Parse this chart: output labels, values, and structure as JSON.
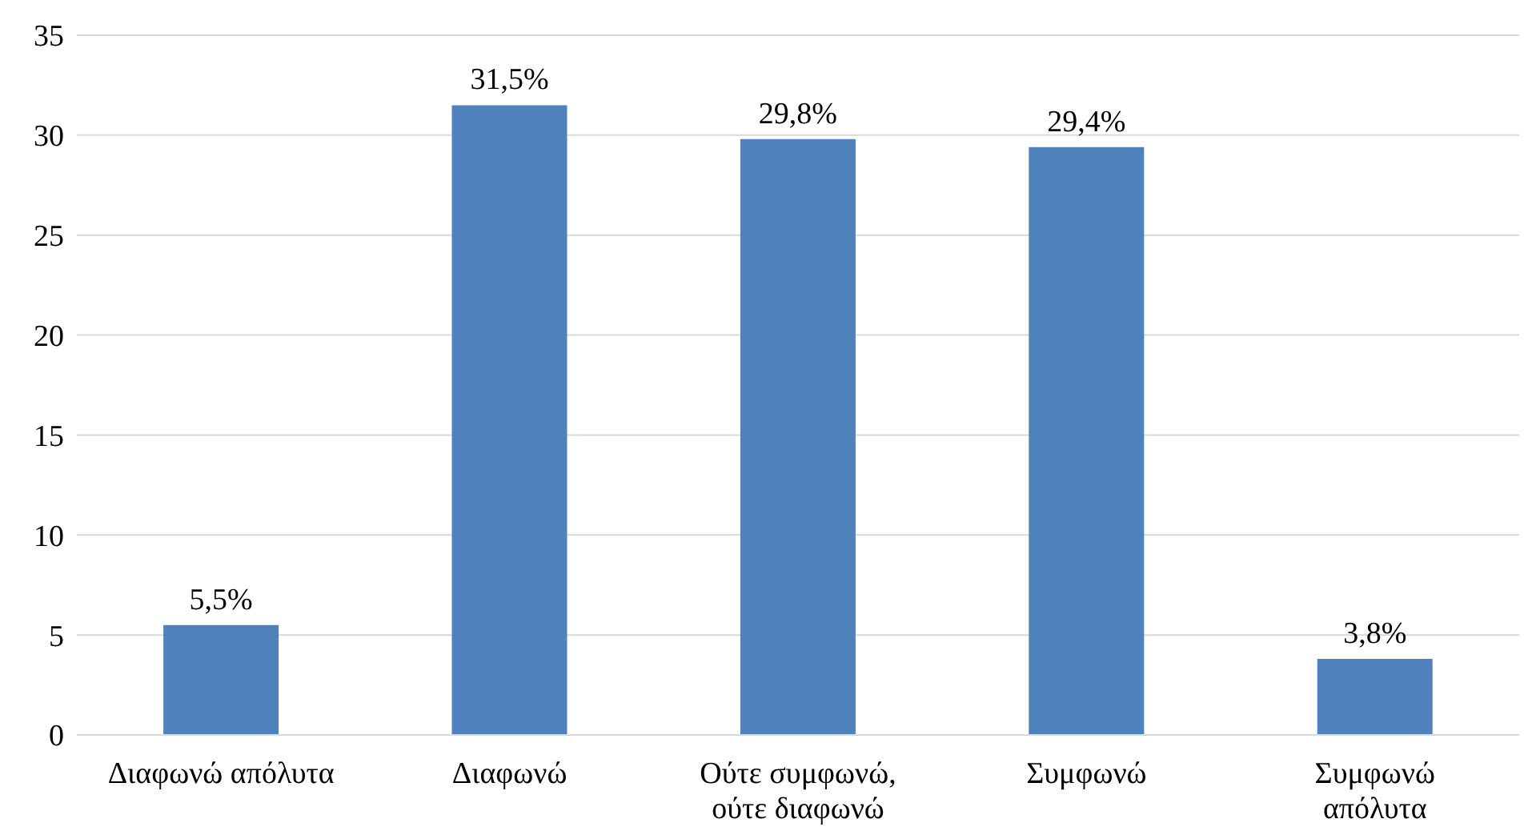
{
  "chart_data": {
    "type": "bar",
    "categories": [
      "Διαφωνώ απόλυτα",
      "Διαφωνώ",
      "Ούτε συμφωνώ,\nούτε διαφωνώ",
      "Συμφωνώ",
      "Συμφωνώ\nαπόλυτα"
    ],
    "values": [
      5.5,
      31.5,
      29.8,
      29.4,
      3.8
    ],
    "value_labels": [
      "5,5%",
      "31,5%",
      "29,8%",
      "29,4%",
      "3,8%"
    ],
    "color": "#4f81bd",
    "ylim": [
      0,
      35
    ],
    "yticks": [
      0,
      5,
      10,
      15,
      20,
      25,
      30,
      35
    ],
    "grid": "y",
    "legend": false
  }
}
